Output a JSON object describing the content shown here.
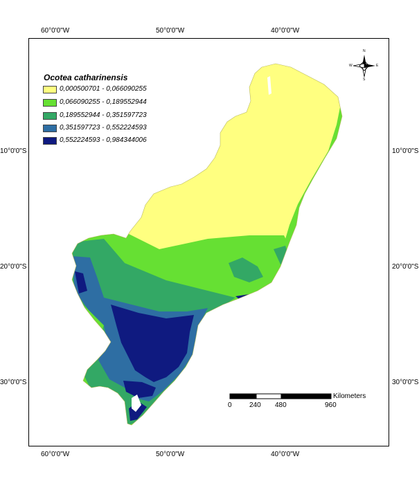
{
  "legend": {
    "title": "Ocotea catharinensis",
    "classes": [
      {
        "label": "0,000500701 - 0,066090255",
        "color": "#ffff80"
      },
      {
        "label": "0,066090255 - 0,189552944",
        "color": "#66e033"
      },
      {
        "label": "0,189552944 - 0,351597723",
        "color": "#33a865"
      },
      {
        "label": "0,351597723 - 0,552224593",
        "color": "#2e6ea3"
      },
      {
        "label": "0,552224593 - 0,984344006",
        "color": "#0f1a80"
      }
    ]
  },
  "graticule": {
    "top": [
      "60°0'0\"W",
      "50°0'0\"W",
      "40°0'0\"W"
    ],
    "bottom": [
      "60°0'0\"W",
      "50°0'0\"W",
      "40°0'0\"W"
    ],
    "left": [
      "10°0'0\"S",
      "20°0'0\"S",
      "30°0'0\"S"
    ],
    "right": [
      "10°0'0\"S",
      "20°0'0\"S",
      "30°0'0\"S"
    ]
  },
  "scale_bar": {
    "unit": "Kilometers",
    "ticks": [
      "0",
      "240",
      "480",
      "960"
    ]
  },
  "north_arrow": {
    "icon": "compass-rose-icon",
    "letters": {
      "n": "N",
      "s": "S",
      "e": "E",
      "w": "W"
    }
  }
}
